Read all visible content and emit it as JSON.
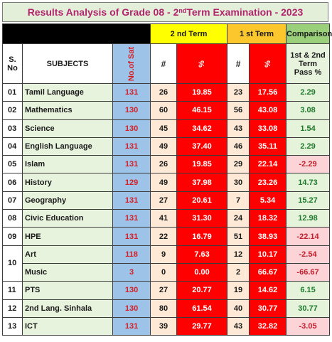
{
  "title": {
    "prefix": "Results Analysis of Grade  08  - 2",
    "sup": "nd",
    "suffix": " Term Examination  - 2023"
  },
  "header": {
    "term2": "2 nd Term",
    "term1": "1 st Term",
    "comparison": "Comparison",
    "sno": "S. No",
    "subjects": "SUBJECTS",
    "no_of_sat": "No.of Sat",
    "hash": "#",
    "percent": "%",
    "pass_pct": "1st & 2nd Term Pass %"
  },
  "rows": [
    {
      "no": "01",
      "subject": "Tamil Language",
      "sat": "131",
      "t2n": "26",
      "t2p": "19.85",
      "t1n": "23",
      "t1p": "17.56",
      "cmp": "2.29",
      "sign": "pos"
    },
    {
      "no": "02",
      "subject": "Mathematics",
      "sat": "130",
      "t2n": "60",
      "t2p": "46.15",
      "t1n": "56",
      "t1p": "43.08",
      "cmp": "3.08",
      "sign": "pos"
    },
    {
      "no": "03",
      "subject": "Science",
      "sat": "130",
      "t2n": "45",
      "t2p": "34.62",
      "t1n": "43",
      "t1p": "33.08",
      "cmp": "1.54",
      "sign": "pos"
    },
    {
      "no": "04",
      "subject": "English Language",
      "sat": "131",
      "t2n": "49",
      "t2p": "37.40",
      "t1n": "46",
      "t1p": "35.11",
      "cmp": "2.29",
      "sign": "pos"
    },
    {
      "no": "05",
      "subject": "Islam",
      "sat": "131",
      "t2n": "26",
      "t2p": "19.85",
      "t1n": "29",
      "t1p": "22.14",
      "cmp": "-2.29",
      "sign": "neg"
    },
    {
      "no": "06",
      "subject": "History",
      "sat": "129",
      "t2n": "49",
      "t2p": "37.98",
      "t1n": "30",
      "t1p": "23.26",
      "cmp": "14.73",
      "sign": "pos"
    },
    {
      "no": "07",
      "subject": "Geography",
      "sat": "131",
      "t2n": "27",
      "t2p": "20.61",
      "t1n": "7",
      "t1p": "5.34",
      "cmp": "15.27",
      "sign": "pos"
    },
    {
      "no": "08",
      "subject": "Civic Education",
      "sat": "131",
      "t2n": "41",
      "t2p": "31.30",
      "t1n": "24",
      "t1p": "18.32",
      "cmp": "12.98",
      "sign": "pos"
    },
    {
      "no": "09",
      "subject": "HPE",
      "sat": "131",
      "t2n": "22",
      "t2p": "16.79",
      "t1n": "51",
      "t1p": "38.93",
      "cmp": "-22.14",
      "sign": "neg"
    },
    {
      "no": "10",
      "subject": "Art",
      "sat": "118",
      "t2n": "9",
      "t2p": "7.63",
      "t1n": "12",
      "t1p": "10.17",
      "cmp": "-2.54",
      "sign": "neg"
    },
    {
      "no": "",
      "subject": "Music",
      "sat": "3",
      "t2n": "0",
      "t2p": "0.00",
      "t1n": "2",
      "t1p": "66.67",
      "cmp": "-66.67",
      "sign": "neg"
    },
    {
      "no": "11",
      "subject": "PTS",
      "sat": "130",
      "t2n": "27",
      "t2p": "20.77",
      "t1n": "19",
      "t1p": "14.62",
      "cmp": "6.15",
      "sign": "pos"
    },
    {
      "no": "12",
      "subject": "2nd Lang. Sinhala",
      "sat": "130",
      "t2n": "80",
      "t2p": "61.54",
      "t1n": "40",
      "t1p": "30.77",
      "cmp": "30.77",
      "sign": "pos"
    },
    {
      "no": "13",
      "subject": "ICT",
      "sat": "131",
      "t2n": "39",
      "t2p": "29.77",
      "t1n": "43",
      "t1p": "32.82",
      "cmp": "-3.05",
      "sign": "neg"
    }
  ]
}
